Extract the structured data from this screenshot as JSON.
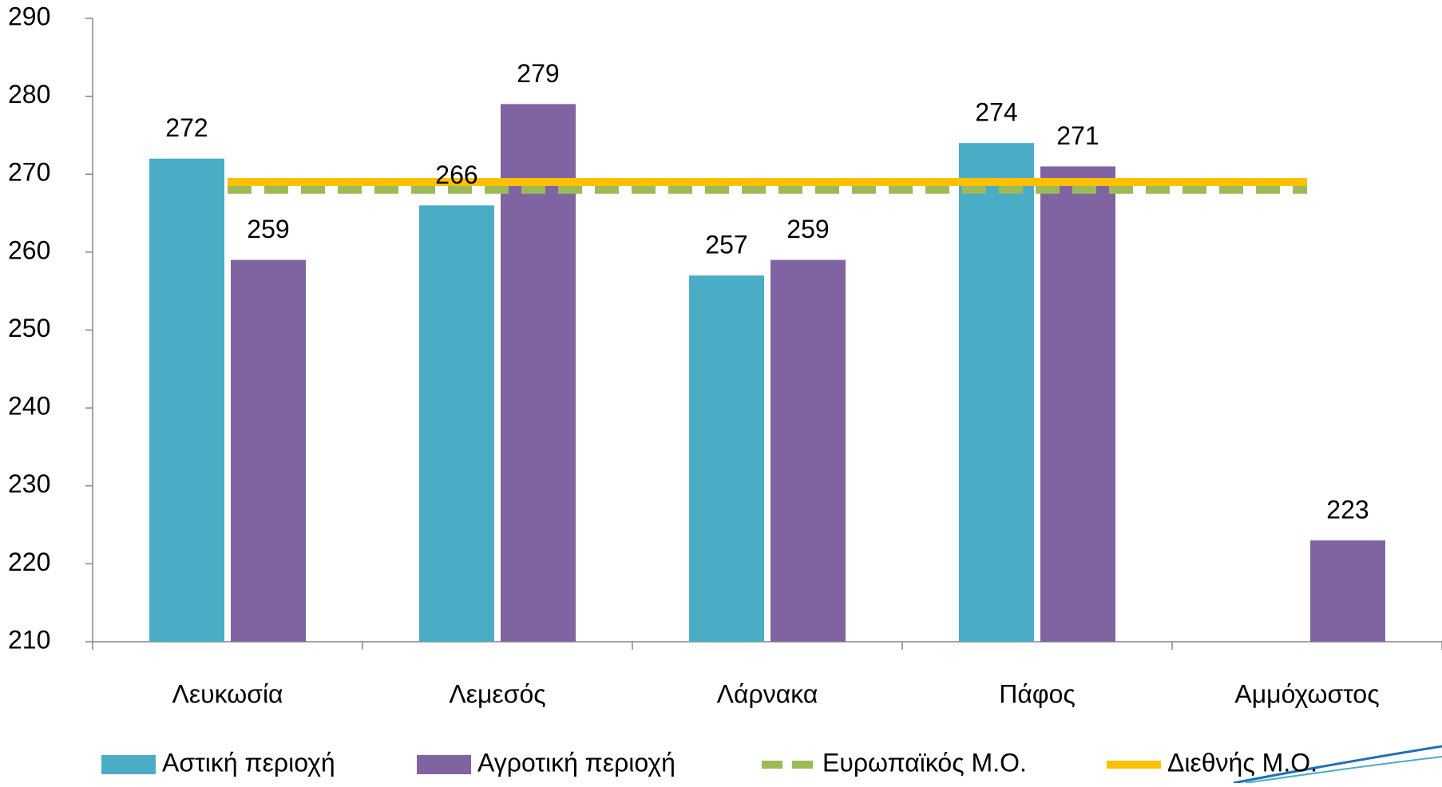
{
  "chart_data": {
    "type": "bar",
    "categories": [
      "Λευκωσία",
      "Λεμεσός",
      "Λάρνακα",
      "Πάφος",
      "Αμμόχωστος"
    ],
    "series": [
      {
        "name": "Αστική περιοχή",
        "type": "bar",
        "color": "#4bacc6",
        "values": [
          272,
          266,
          257,
          274,
          null
        ]
      },
      {
        "name": "Αγροτική περιοχή",
        "type": "bar",
        "color": "#8064a2",
        "values": [
          259,
          279,
          259,
          271,
          223
        ]
      },
      {
        "name": "Ευρωπαϊκός Μ.Ο.",
        "type": "line",
        "dashed": true,
        "color": "#9bbb59",
        "values": [
          268,
          268,
          268,
          268,
          268
        ]
      },
      {
        "name": "Διεθνής Μ.Ο.",
        "type": "line",
        "dashed": false,
        "color": "#ffc000",
        "values": [
          269,
          269,
          269,
          269,
          269
        ]
      }
    ],
    "ylim": [
      210,
      290
    ],
    "yticks": [
      210,
      220,
      230,
      240,
      250,
      260,
      270,
      280,
      290
    ],
    "legend": "bottom",
    "data_labels": true
  }
}
